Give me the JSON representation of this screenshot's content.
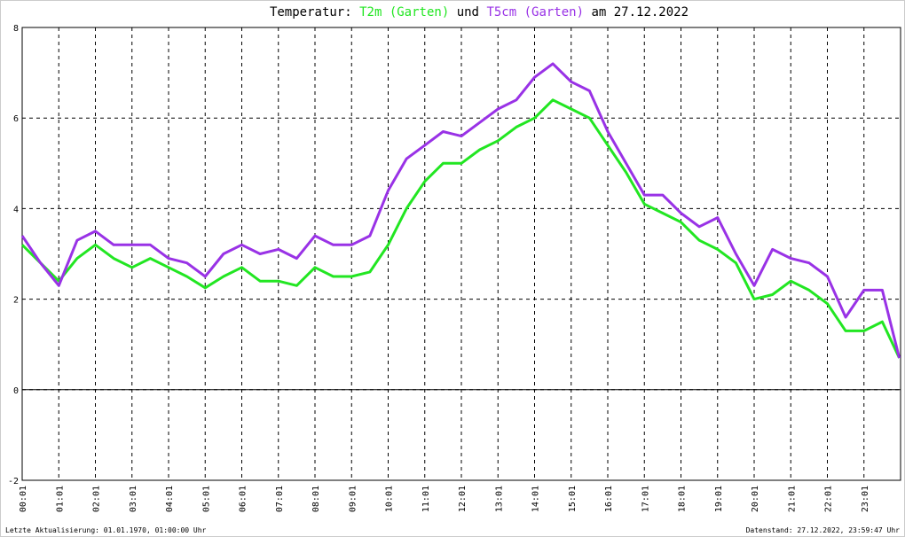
{
  "chart_data": {
    "type": "line",
    "title": {
      "before": "Temperatur:",
      "between": "und",
      "after": "am 27.12.2022"
    },
    "x": [
      "00:01",
      "00:31",
      "01:01",
      "01:31",
      "02:01",
      "02:31",
      "03:01",
      "03:31",
      "04:01",
      "04:31",
      "05:01",
      "05:31",
      "06:01",
      "06:31",
      "07:01",
      "07:31",
      "08:01",
      "08:31",
      "09:01",
      "09:31",
      "10:01",
      "10:31",
      "11:01",
      "11:31",
      "12:01",
      "12:31",
      "13:01",
      "13:31",
      "14:01",
      "14:31",
      "15:01",
      "15:31",
      "16:01",
      "16:31",
      "17:01",
      "17:31",
      "18:01",
      "18:31",
      "19:01",
      "19:31",
      "20:01",
      "20:31",
      "21:01",
      "21:31",
      "22:01",
      "22:31",
      "23:01",
      "23:31",
      "23:59"
    ],
    "series": [
      {
        "name": "T2m (Garten)",
        "color": "#22e622",
        "values": [
          3.2,
          2.8,
          2.4,
          2.9,
          3.2,
          2.9,
          2.7,
          2.9,
          2.7,
          2.5,
          2.25,
          2.5,
          2.7,
          2.4,
          2.4,
          2.3,
          2.7,
          2.5,
          2.5,
          2.6,
          3.2,
          4.0,
          4.6,
          5.0,
          5.0,
          5.3,
          5.5,
          5.8,
          6.0,
          6.4,
          6.2,
          6.0,
          5.4,
          4.8,
          4.1,
          3.9,
          3.7,
          3.3,
          3.1,
          2.8,
          2.0,
          2.1,
          2.4,
          2.2,
          1.9,
          1.3,
          1.3,
          1.5,
          0.7
        ]
      },
      {
        "name": "T5cm (Garten)",
        "color": "#9932e6",
        "values": [
          3.4,
          2.8,
          2.3,
          3.3,
          3.5,
          3.2,
          3.2,
          3.2,
          2.9,
          2.8,
          2.5,
          3.0,
          3.2,
          3.0,
          3.1,
          2.9,
          3.4,
          3.2,
          3.2,
          3.4,
          4.4,
          5.1,
          5.4,
          5.7,
          5.6,
          5.9,
          6.2,
          6.4,
          6.9,
          7.2,
          6.8,
          6.6,
          5.7,
          5.0,
          4.3,
          4.3,
          3.9,
          3.6,
          3.8,
          3.0,
          2.3,
          3.1,
          2.9,
          2.8,
          2.5,
          1.6,
          2.2,
          2.2,
          0.7
        ]
      }
    ],
    "xlim": [
      "00:01",
      "24:01"
    ],
    "xticks": [
      "00:01",
      "01:01",
      "02:01",
      "03:01",
      "04:01",
      "05:01",
      "06:01",
      "07:01",
      "08:01",
      "09:01",
      "10:01",
      "11:01",
      "12:01",
      "13:01",
      "14:01",
      "15:01",
      "16:01",
      "17:01",
      "18:01",
      "19:01",
      "20:01",
      "21:01",
      "22:01",
      "23:01"
    ],
    "ylim": [
      -2,
      8
    ],
    "yticks": [
      -2,
      0,
      2,
      4,
      6,
      8
    ],
    "grid": true,
    "footer_left": "Letzte Aktualisierung: 01.01.1970, 01:00:00 Uhr",
    "footer_right": "Datenstand: 27.12.2022, 23:59:47 Uhr"
  }
}
